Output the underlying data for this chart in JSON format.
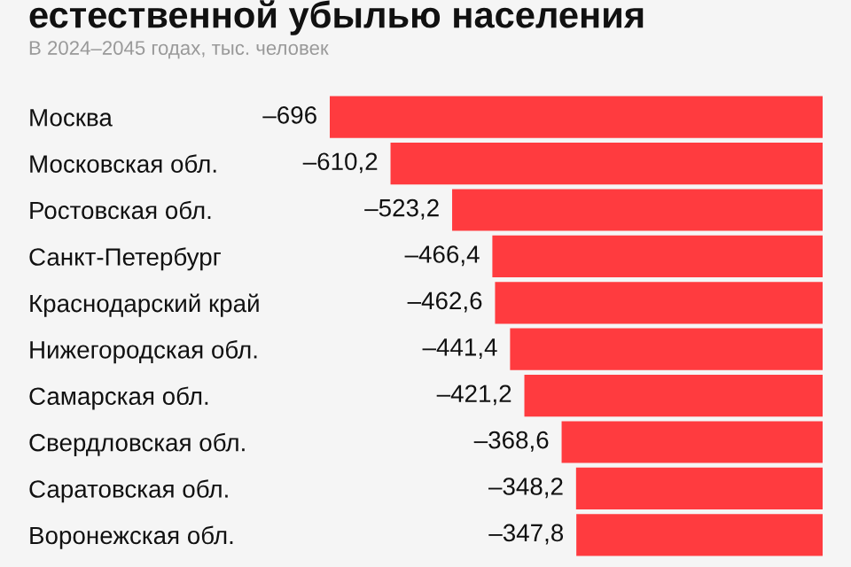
{
  "chart_data": {
    "type": "bar",
    "orientation": "horizontal",
    "title": "естественной убылью населения",
    "subtitle": "В 2024–2045 годах, тыс. человек",
    "categories": [
      "Москва",
      "Московская обл.",
      "Ростовская обл.",
      "Санкт-Петербург",
      "Краснодарский край",
      "Нижегородская обл.",
      "Самарская обл.",
      "Свердловская обл.",
      "Саратовская обл.",
      "Воронежская обл."
    ],
    "values": [
      -696,
      -610.2,
      -523.2,
      -466.4,
      -462.6,
      -441.4,
      -421.2,
      -368.6,
      -348.2,
      -347.8
    ],
    "value_labels": [
      "–696",
      "–610,2",
      "–523,2",
      "–466,4",
      "–462,6",
      "–441,4",
      "–421,2",
      "–368,6",
      "–348,2",
      "–347,8"
    ],
    "color": "#ff3b3f",
    "grid": false,
    "legend": false
  }
}
